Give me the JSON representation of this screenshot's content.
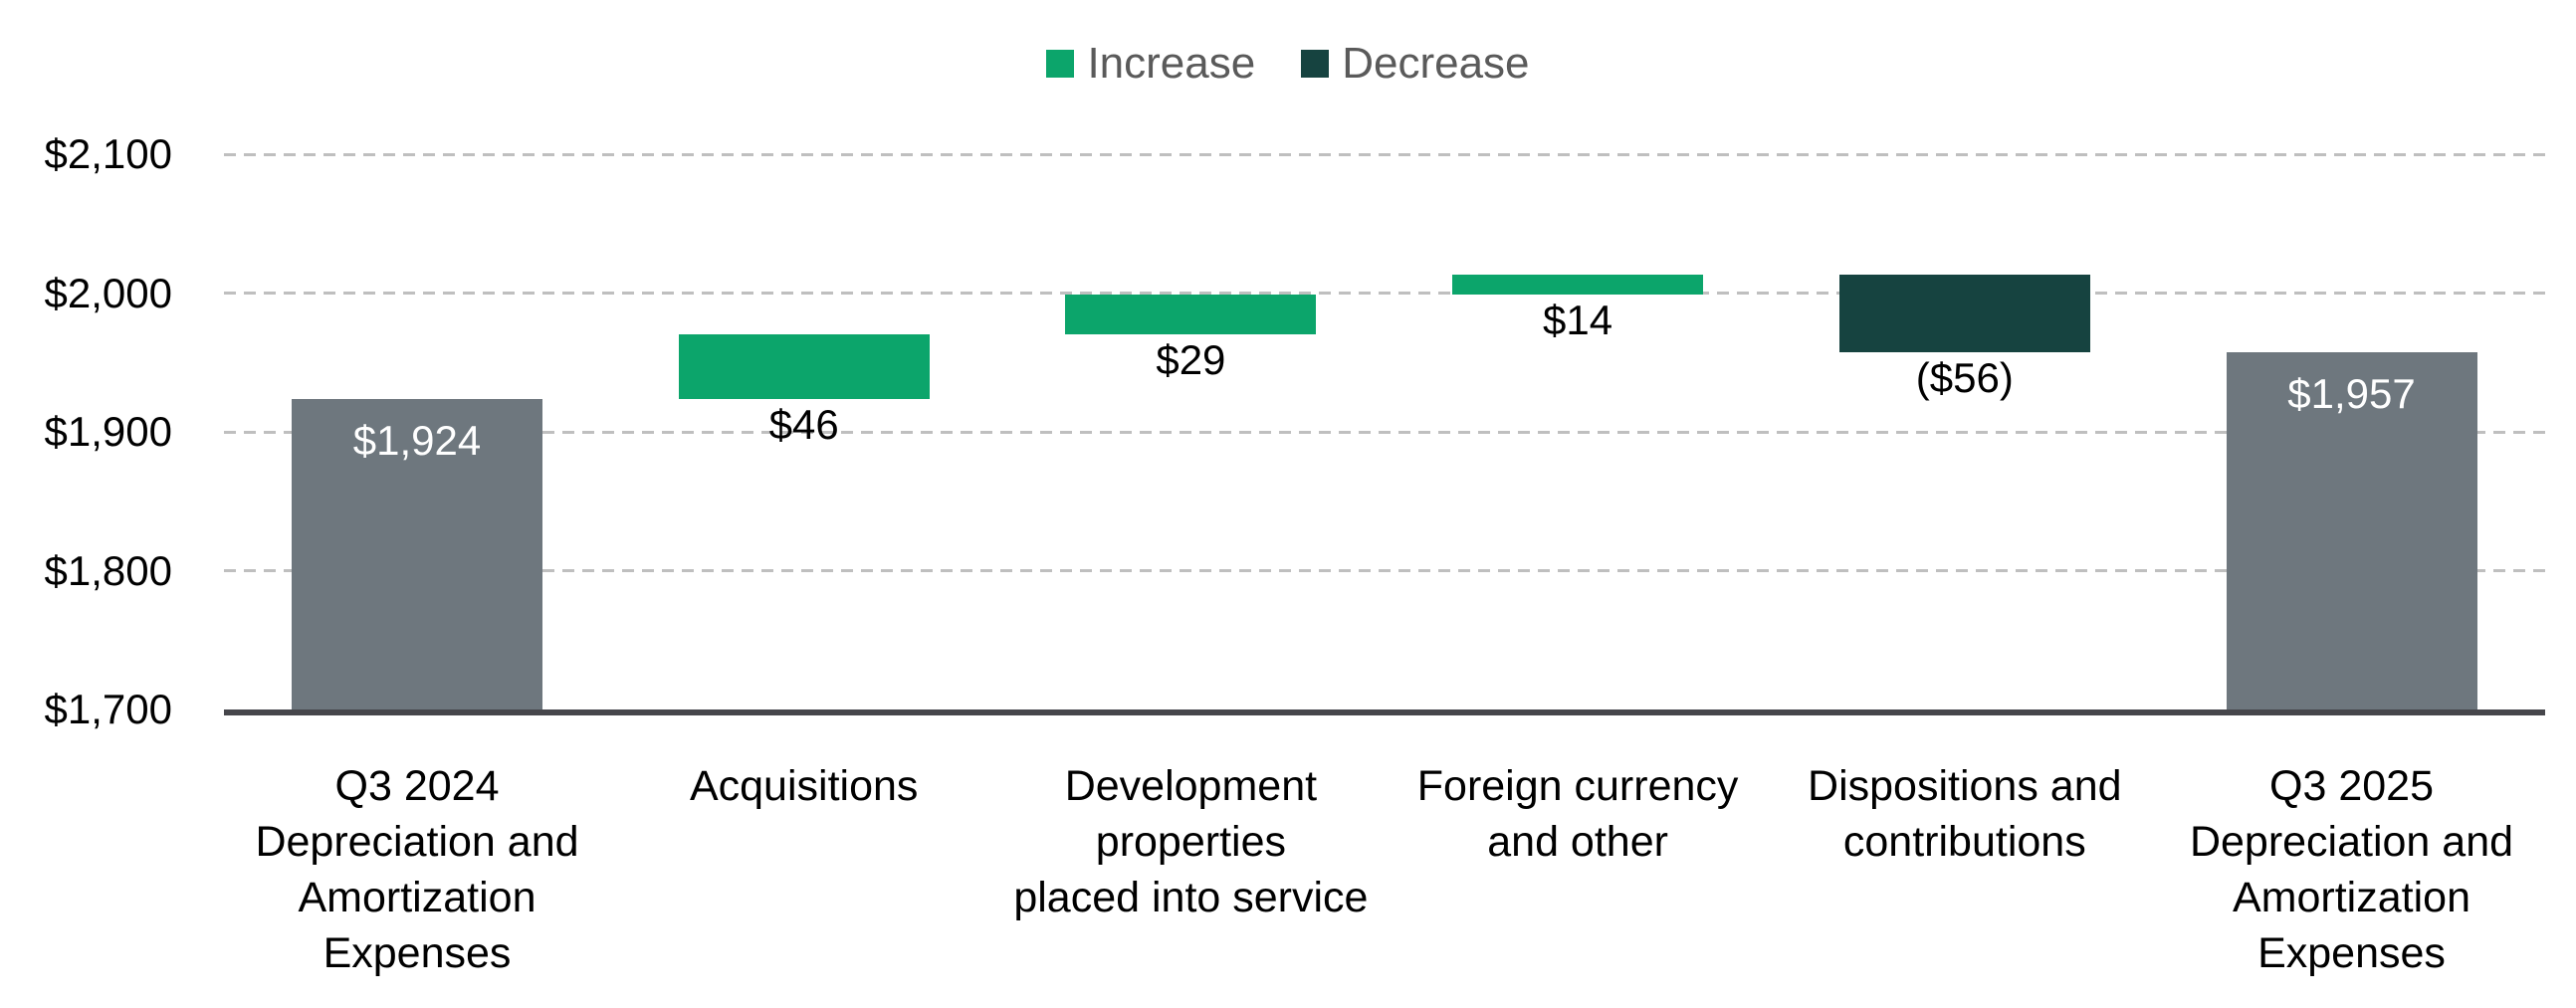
{
  "chart_data": {
    "type": "bar",
    "subtype": "waterfall",
    "title": "",
    "legend": {
      "position": "top-center",
      "entries": [
        {
          "label": "Increase",
          "color": "#0ca56b"
        },
        {
          "label": "Decrease",
          "color": "#164340"
        }
      ]
    },
    "y_axis": {
      "min": 1700,
      "max": 2100,
      "step": 100,
      "tick_labels": [
        "$1,700",
        "$1,800",
        "$1,900",
        "$2,000",
        "$2,100"
      ],
      "grid": "dashed"
    },
    "bars": [
      {
        "category_lines": [
          "Q3 2024",
          "Depreciation and",
          "Amortization",
          "Expenses"
        ],
        "kind": "total",
        "value": 1924,
        "label": "$1,924",
        "label_position": "inside-top"
      },
      {
        "category_lines": [
          "Acquisitions"
        ],
        "kind": "increase",
        "value": 46,
        "label": "$46",
        "label_position": "below"
      },
      {
        "category_lines": [
          "Development",
          "properties",
          "placed into service"
        ],
        "kind": "increase",
        "value": 29,
        "label": "$29",
        "label_position": "below"
      },
      {
        "category_lines": [
          "Foreign currency",
          "and other"
        ],
        "kind": "increase",
        "value": 14,
        "label": "$14",
        "label_position": "below"
      },
      {
        "category_lines": [
          "Dispositions and",
          "contributions"
        ],
        "kind": "decrease",
        "value": -56,
        "label": "($56)",
        "label_position": "below"
      },
      {
        "category_lines": [
          "Q3 2025",
          "Depreciation and",
          "Amortization",
          "Expenses"
        ],
        "kind": "total",
        "value": 1957,
        "label": "$1,957",
        "label_position": "inside-top"
      }
    ],
    "colors": {
      "increase": "#0ca56b",
      "decrease": "#164340",
      "total": "#6e777e",
      "total_label_text": "#ffffff",
      "delta_label_text": "#000000",
      "gridline": "#bfbfbf",
      "axis_line": "#46464b",
      "tick_text": "#000000",
      "legend_text": "#5a5a5a"
    }
  }
}
